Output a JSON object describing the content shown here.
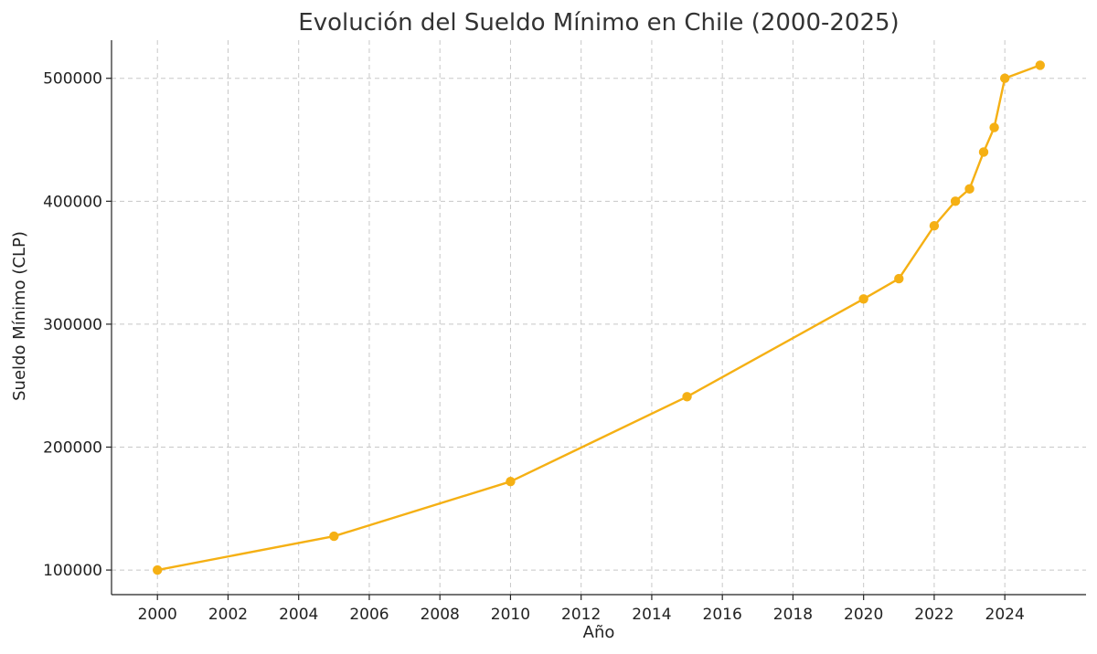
{
  "chart_data": {
    "type": "line",
    "title": "Evolución del Sueldo Mínimo en Chile (2000-2025)",
    "xlabel": "Año",
    "ylabel": "Sueldo Mínimo (CLP)",
    "xlim": [
      1998.7,
      2026.3
    ],
    "ylim": [
      80000,
      531000
    ],
    "x_ticks": [
      2000,
      2002,
      2004,
      2006,
      2008,
      2010,
      2012,
      2014,
      2016,
      2018,
      2020,
      2022,
      2024
    ],
    "y_ticks": [
      100000,
      200000,
      300000,
      400000,
      500000
    ],
    "grid": true,
    "color": "#f5b014",
    "series": [
      {
        "points": [
          {
            "x": 2000,
            "y": 100000
          },
          {
            "x": 2005,
            "y": 127500
          },
          {
            "x": 2010,
            "y": 172000
          },
          {
            "x": 2015,
            "y": 241000
          },
          {
            "x": 2020,
            "y": 320500
          },
          {
            "x": 2021,
            "y": 337000
          },
          {
            "x": 2022,
            "y": 380000
          },
          {
            "x": 2022.6,
            "y": 400000
          },
          {
            "x": 2023,
            "y": 410000
          },
          {
            "x": 2023.4,
            "y": 440000
          },
          {
            "x": 2023.7,
            "y": 460000
          },
          {
            "x": 2024,
            "y": 500000
          },
          {
            "x": 2025,
            "y": 510636
          }
        ]
      }
    ]
  }
}
